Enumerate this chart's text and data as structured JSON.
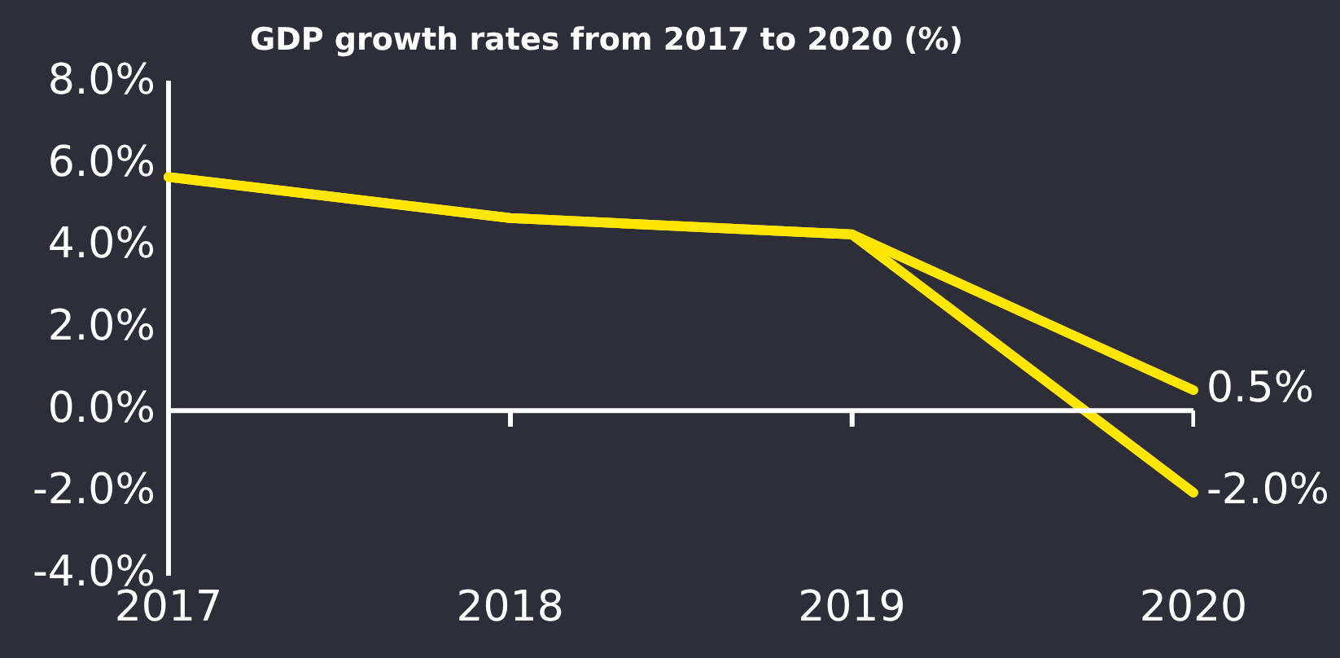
{
  "chart_data": {
    "type": "line",
    "title": "GDP growth rates from 2017 to 2020 (%)",
    "categories": [
      "2017",
      "2018",
      "2019",
      "2020"
    ],
    "series": [
      {
        "color": "#ffe600",
        "values": [
          5.7,
          4.7,
          4.3,
          0.5
        ],
        "value_labels": [
          null,
          null,
          null,
          "0.5%"
        ]
      },
      {
        "color": "#ffe600",
        "values": [
          5.7,
          4.7,
          4.3,
          -2.0
        ],
        "value_labels": [
          null,
          null,
          null,
          "-2.0%"
        ]
      }
    ],
    "ylim": [
      -4,
      8
    ],
    "yticks": [
      {
        "value": -4,
        "label": "-4.0%"
      },
      {
        "value": -2,
        "label": "-2.0%"
      },
      {
        "value": 0,
        "label": "0.0%"
      },
      {
        "value": 2,
        "label": "2.0%"
      },
      {
        "value": 4,
        "label": "4.0%"
      },
      {
        "value": 6,
        "label": "6.0%"
      },
      {
        "value": 8,
        "label": "8.0%"
      }
    ],
    "ref_lines": [
      {
        "axis": "y",
        "value": 0,
        "color": "#ffffff"
      }
    ],
    "grid": false,
    "legend": false,
    "marker": "none",
    "line_style": "solid"
  }
}
